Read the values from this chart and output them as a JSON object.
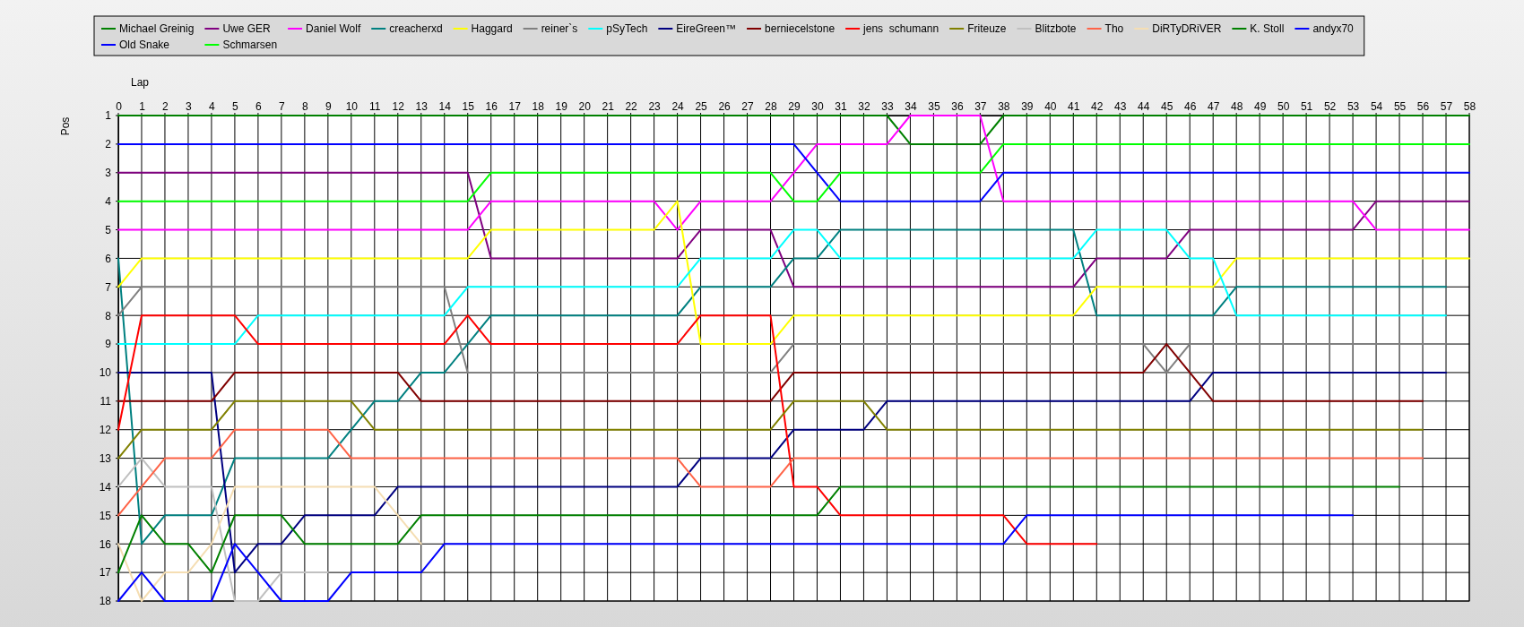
{
  "chart_data": {
    "type": "line",
    "xlabel": "Lap",
    "ylabel": "Pos",
    "grid": true,
    "legend": "top",
    "marker": "none",
    "line_style": "solid",
    "x": [
      0,
      1,
      2,
      3,
      4,
      5,
      6,
      7,
      8,
      9,
      10,
      11,
      12,
      13,
      14,
      15,
      16,
      17,
      18,
      19,
      20,
      21,
      22,
      23,
      24,
      25,
      26,
      27,
      28,
      29,
      30,
      31,
      32,
      33,
      34,
      35,
      36,
      37,
      38,
      39,
      40,
      41,
      42,
      43,
      44,
      45,
      46,
      47,
      48,
      49,
      50,
      51,
      52,
      53,
      54,
      55,
      56,
      57,
      58
    ],
    "xlim": [
      0,
      58
    ],
    "xticks": [
      0,
      1,
      2,
      3,
      4,
      5,
      6,
      7,
      8,
      9,
      10,
      11,
      12,
      13,
      14,
      15,
      16,
      17,
      18,
      19,
      20,
      21,
      22,
      23,
      24,
      25,
      26,
      27,
      28,
      29,
      30,
      31,
      32,
      33,
      34,
      35,
      36,
      37,
      38,
      39,
      40,
      41,
      42,
      43,
      44,
      45,
      46,
      47,
      48,
      49,
      50,
      51,
      52,
      53,
      54,
      55,
      56,
      57,
      58
    ],
    "ylim": [
      18,
      1
    ],
    "yticks": [
      1,
      2,
      3,
      4,
      5,
      6,
      7,
      8,
      9,
      10,
      11,
      12,
      13,
      14,
      15,
      16,
      17,
      18
    ],
    "series": [
      {
        "name": "Michael Greinig",
        "color": "#008000",
        "values": [
          1,
          1,
          1,
          1,
          1,
          1,
          1,
          1,
          1,
          1,
          1,
          1,
          1,
          1,
          1,
          1,
          1,
          1,
          1,
          1,
          1,
          1,
          1,
          1,
          1,
          1,
          1,
          1,
          1,
          1,
          1,
          1,
          1,
          1,
          2,
          2,
          2,
          2,
          1,
          1,
          1,
          1,
          1,
          1,
          1,
          1,
          1,
          1,
          1,
          1,
          1,
          1,
          1,
          1,
          1,
          1,
          1,
          1,
          1
        ]
      },
      {
        "name": "Uwe GER",
        "color": "#800080",
        "values": [
          3,
          3,
          3,
          3,
          3,
          3,
          3,
          3,
          3,
          3,
          3,
          3,
          3,
          3,
          3,
          3,
          6,
          6,
          6,
          6,
          6,
          6,
          6,
          6,
          6,
          5,
          5,
          5,
          5,
          7,
          7,
          7,
          7,
          7,
          7,
          7,
          7,
          7,
          7,
          7,
          7,
          7,
          6,
          6,
          6,
          6,
          5,
          5,
          5,
          5,
          5,
          5,
          5,
          5,
          4,
          4,
          4,
          4,
          4
        ]
      },
      {
        "name": "Daniel Wolf",
        "color": "#ff00ff",
        "values": [
          5,
          5,
          5,
          5,
          5,
          5,
          5,
          5,
          5,
          5,
          5,
          5,
          5,
          5,
          5,
          5,
          4,
          4,
          4,
          4,
          4,
          4,
          4,
          4,
          5,
          4,
          4,
          4,
          4,
          3,
          2,
          2,
          2,
          2,
          1,
          1,
          1,
          1,
          4,
          4,
          4,
          4,
          4,
          4,
          4,
          4,
          4,
          4,
          4,
          4,
          4,
          4,
          4,
          4,
          5,
          5,
          5,
          5,
          5
        ]
      },
      {
        "name": "creacherxd",
        "color": "#008080",
        "values": [
          6,
          16,
          15,
          15,
          15,
          13,
          13,
          13,
          13,
          13,
          12,
          11,
          11,
          10,
          10,
          9,
          8,
          8,
          8,
          8,
          8,
          8,
          8,
          8,
          8,
          7,
          7,
          7,
          7,
          6,
          6,
          5,
          5,
          5,
          5,
          5,
          5,
          5,
          5,
          5,
          5,
          5,
          8,
          8,
          8,
          8,
          8,
          8,
          7,
          7,
          7,
          7,
          7,
          7,
          7,
          7,
          7,
          7,
          null
        ]
      },
      {
        "name": "Haggard",
        "color": "#ffff00",
        "values": [
          7,
          6,
          6,
          6,
          6,
          6,
          6,
          6,
          6,
          6,
          6,
          6,
          6,
          6,
          6,
          6,
          5,
          5,
          5,
          5,
          5,
          5,
          5,
          5,
          4,
          9,
          9,
          9,
          9,
          8,
          8,
          8,
          8,
          8,
          8,
          8,
          8,
          8,
          8,
          8,
          8,
          8,
          7,
          7,
          7,
          7,
          7,
          7,
          6,
          6,
          6,
          6,
          6,
          6,
          6,
          6,
          6,
          6,
          6
        ]
      },
      {
        "name": "reiner`s",
        "color": "#808080",
        "values": [
          8,
          7,
          7,
          7,
          7,
          7,
          7,
          7,
          7,
          7,
          7,
          7,
          7,
          7,
          7,
          10,
          10,
          10,
          10,
          10,
          10,
          10,
          10,
          10,
          10,
          10,
          10,
          10,
          10,
          9,
          9,
          9,
          9,
          9,
          9,
          9,
          9,
          9,
          9,
          9,
          9,
          9,
          9,
          9,
          9,
          10,
          9,
          9,
          9,
          9,
          9,
          9,
          9,
          9,
          9,
          9,
          9,
          9,
          null
        ]
      },
      {
        "name": "pSyTech",
        "color": "#00ffff",
        "values": [
          9,
          9,
          9,
          9,
          9,
          9,
          8,
          8,
          8,
          8,
          8,
          8,
          8,
          8,
          8,
          7,
          7,
          7,
          7,
          7,
          7,
          7,
          7,
          7,
          7,
          6,
          6,
          6,
          6,
          5,
          5,
          6,
          6,
          6,
          6,
          6,
          6,
          6,
          6,
          6,
          6,
          6,
          5,
          5,
          5,
          5,
          6,
          6,
          8,
          8,
          8,
          8,
          8,
          8,
          8,
          8,
          8,
          8,
          null
        ]
      },
      {
        "name": "EireGreen™",
        "color": "#000080",
        "values": [
          10,
          10,
          10,
          10,
          10,
          17,
          16,
          16,
          15,
          15,
          15,
          15,
          14,
          14,
          14,
          14,
          14,
          14,
          14,
          14,
          14,
          14,
          14,
          14,
          14,
          13,
          13,
          13,
          13,
          12,
          12,
          12,
          12,
          11,
          11,
          11,
          11,
          11,
          11,
          11,
          11,
          11,
          11,
          11,
          11,
          11,
          11,
          10,
          10,
          10,
          10,
          10,
          10,
          10,
          10,
          10,
          10,
          10,
          null
        ]
      },
      {
        "name": "berniecelstone",
        "color": "#800000",
        "values": [
          11,
          11,
          11,
          11,
          11,
          10,
          10,
          10,
          10,
          10,
          10,
          10,
          10,
          11,
          11,
          11,
          11,
          11,
          11,
          11,
          11,
          11,
          11,
          11,
          11,
          11,
          11,
          11,
          11,
          10,
          10,
          10,
          10,
          10,
          10,
          10,
          10,
          10,
          10,
          10,
          10,
          10,
          10,
          10,
          10,
          9,
          10,
          11,
          11,
          11,
          11,
          11,
          11,
          11,
          11,
          11,
          11,
          null,
          null
        ]
      },
      {
        "name": "jens  schumann",
        "color": "#ff0000",
        "values": [
          12,
          8,
          8,
          8,
          8,
          8,
          9,
          9,
          9,
          9,
          9,
          9,
          9,
          9,
          9,
          8,
          9,
          9,
          9,
          9,
          9,
          9,
          9,
          9,
          9,
          8,
          8,
          8,
          8,
          14,
          14,
          15,
          15,
          15,
          15,
          15,
          15,
          15,
          15,
          16,
          16,
          16,
          16,
          null,
          null,
          null,
          null,
          null,
          null,
          null,
          null,
          null,
          null,
          null,
          null,
          null,
          null,
          null,
          null
        ]
      },
      {
        "name": "Friteuze",
        "color": "#808000",
        "values": [
          13,
          12,
          12,
          12,
          12,
          11,
          11,
          11,
          11,
          11,
          11,
          12,
          12,
          12,
          12,
          12,
          12,
          12,
          12,
          12,
          12,
          12,
          12,
          12,
          12,
          12,
          12,
          12,
          12,
          11,
          11,
          11,
          11,
          12,
          12,
          12,
          12,
          12,
          12,
          12,
          12,
          12,
          12,
          12,
          12,
          12,
          12,
          12,
          12,
          12,
          12,
          12,
          12,
          12,
          12,
          12,
          12,
          null,
          null
        ]
      },
      {
        "name": "Blitzbote",
        "color": "#c0c0c0",
        "values": [
          14,
          13,
          14,
          14,
          14,
          18,
          18,
          17,
          17,
          17,
          null,
          null,
          null,
          null,
          null,
          null,
          null,
          null,
          null,
          null,
          null,
          null,
          null,
          null,
          null,
          null,
          null,
          null,
          null,
          null,
          null,
          null,
          null,
          null,
          null,
          null,
          null,
          null,
          null,
          null,
          null,
          null,
          null,
          null,
          null,
          null,
          null,
          null,
          null,
          null,
          null,
          null,
          null,
          null,
          null,
          null,
          null,
          null,
          null
        ]
      },
      {
        "name": "Tho",
        "color": "#ff6347",
        "values": [
          15,
          14,
          13,
          13,
          13,
          12,
          12,
          12,
          12,
          12,
          13,
          13,
          13,
          13,
          13,
          13,
          13,
          13,
          13,
          13,
          13,
          13,
          13,
          13,
          13,
          14,
          14,
          14,
          14,
          13,
          13,
          13,
          13,
          13,
          13,
          13,
          13,
          13,
          13,
          13,
          13,
          13,
          13,
          13,
          13,
          13,
          13,
          13,
          13,
          13,
          13,
          13,
          13,
          13,
          13,
          13,
          13,
          null,
          null
        ]
      },
      {
        "name": "DiRTyDRiVER",
        "color": "#f5deb3",
        "values": [
          16,
          18,
          17,
          17,
          16,
          14,
          14,
          14,
          14,
          14,
          14,
          14,
          15,
          16,
          null,
          null,
          null,
          null,
          null,
          null,
          null,
          null,
          null,
          null,
          null,
          null,
          null,
          null,
          null,
          null,
          null,
          null,
          null,
          null,
          null,
          null,
          null,
          null,
          null,
          null,
          null,
          null,
          null,
          null,
          null,
          null,
          null,
          null,
          null,
          null,
          null,
          null,
          null,
          null,
          null,
          null,
          null,
          null,
          null
        ]
      },
      {
        "name": "K. Stoll",
        "color": "#008000",
        "values": [
          17,
          15,
          16,
          16,
          17,
          15,
          15,
          15,
          16,
          16,
          16,
          16,
          16,
          15,
          15,
          15,
          15,
          15,
          15,
          15,
          15,
          15,
          15,
          15,
          15,
          15,
          15,
          15,
          15,
          15,
          15,
          14,
          14,
          14,
          14,
          14,
          14,
          14,
          14,
          14,
          14,
          14,
          14,
          14,
          14,
          14,
          14,
          14,
          14,
          14,
          14,
          14,
          14,
          14,
          14,
          14,
          null,
          null,
          null
        ]
      },
      {
        "name": "andyx70",
        "color": "#0000ff",
        "values": [
          2,
          2,
          2,
          2,
          2,
          2,
          2,
          2,
          2,
          2,
          2,
          2,
          2,
          2,
          2,
          2,
          2,
          2,
          2,
          2,
          2,
          2,
          2,
          2,
          2,
          2,
          2,
          2,
          2,
          2,
          3,
          4,
          4,
          4,
          4,
          4,
          4,
          4,
          3,
          3,
          3,
          3,
          3,
          3,
          3,
          3,
          3,
          3,
          3,
          3,
          3,
          3,
          3,
          3,
          3,
          3,
          3,
          3,
          3
        ]
      },
      {
        "name": "Old Snake",
        "color": "#0000ff",
        "values": [
          18,
          17,
          18,
          18,
          18,
          16,
          17,
          18,
          18,
          18,
          17,
          17,
          17,
          17,
          16,
          16,
          16,
          16,
          16,
          16,
          16,
          16,
          16,
          16,
          16,
          16,
          16,
          16,
          16,
          16,
          16,
          16,
          16,
          16,
          16,
          16,
          16,
          16,
          16,
          15,
          15,
          15,
          15,
          15,
          15,
          15,
          15,
          15,
          15,
          15,
          15,
          15,
          15,
          15,
          null,
          null,
          null,
          null,
          null
        ]
      },
      {
        "name": "Schmarsen",
        "color": "#00ff00",
        "values": [
          4,
          4,
          4,
          4,
          4,
          4,
          4,
          4,
          4,
          4,
          4,
          4,
          4,
          4,
          4,
          4,
          3,
          3,
          3,
          3,
          3,
          3,
          3,
          3,
          3,
          3,
          3,
          3,
          3,
          4,
          4,
          3,
          3,
          3,
          3,
          3,
          3,
          3,
          2,
          2,
          2,
          2,
          2,
          2,
          2,
          2,
          2,
          2,
          2,
          2,
          2,
          2,
          2,
          2,
          2,
          2,
          2,
          2,
          2
        ]
      }
    ]
  }
}
